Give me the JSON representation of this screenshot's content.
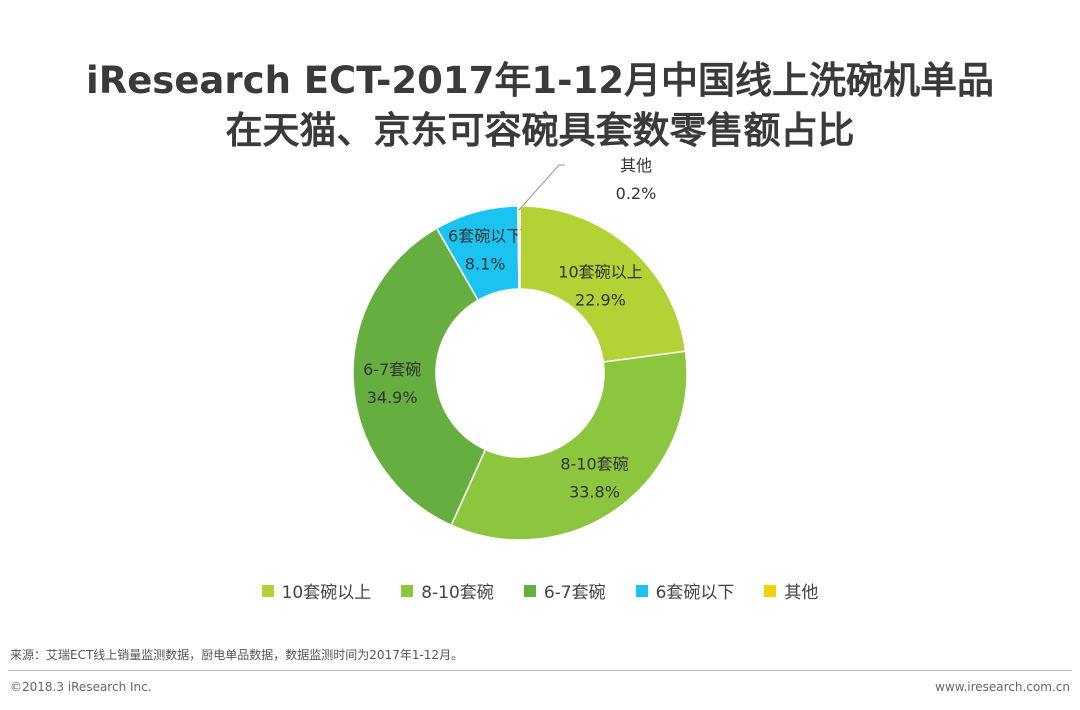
{
  "title_line1": "iResearch ECT-2017年1-12月中国线上洗碗机单品",
  "title_line2": "在天猫、京东可容碗具套数零售额占比",
  "chart_data": {
    "type": "pie",
    "donut": true,
    "categories": [
      "10套碗以上",
      "8-10套碗",
      "6-7套碗",
      "6套碗以下",
      "其他"
    ],
    "values": [
      22.9,
      33.8,
      34.9,
      8.1,
      0.2
    ],
    "value_labels": [
      "22.9%",
      "33.8%",
      "34.9%",
      "8.1%",
      "0.2%"
    ],
    "colors": [
      "#b2d235",
      "#8cc63f",
      "#66ae3f",
      "#1bc4f0",
      "#f2d200"
    ],
    "legend_position": "bottom"
  },
  "footer": {
    "source": "来源：艾瑞ECT线上销量监测数据，厨电单品数据，数据监测时间为2017年1-12月。",
    "copyright": "©2018.3 iResearch Inc.",
    "website": "www.iresearch.com.cn"
  }
}
